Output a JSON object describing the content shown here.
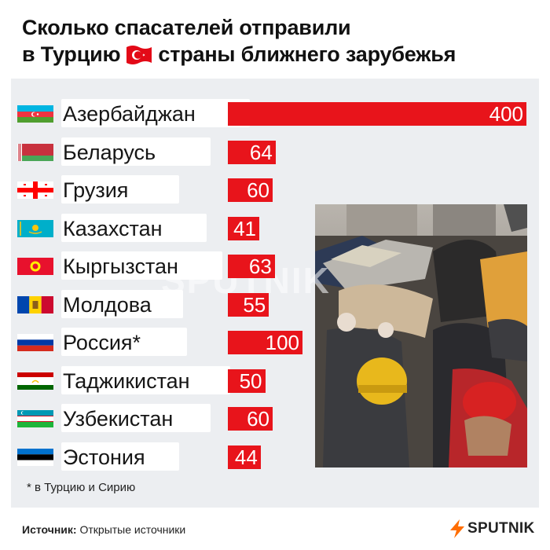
{
  "header": {
    "title_line1": "Сколько спасателей отправили",
    "title_line2_start": "в Турцию",
    "title_line2_end": "страны ближнего зарубежья",
    "title_flag_icon": "turkey-flag-icon"
  },
  "chart_data": {
    "type": "bar",
    "orientation": "horizontal",
    "title": "Сколько спасателей отправили в Турцию страны ближнего зарубежья",
    "categories": [
      "Азербайджан",
      "Беларусь",
      "Грузия",
      "Казахстан",
      "Кыргызстан",
      "Молдова",
      "Россия*",
      "Таджикистан",
      "Узбекистан",
      "Эстония"
    ],
    "values": [
      400,
      64,
      60,
      41,
      63,
      55,
      100,
      50,
      60,
      44
    ],
    "flags": [
      "azerbaijan-flag-icon",
      "belarus-flag-icon",
      "georgia-flag-icon",
      "kazakhstan-flag-icon",
      "kyrgyzstan-flag-icon",
      "moldova-flag-icon",
      "russia-flag-icon",
      "tajikistan-flag-icon",
      "uzbekistan-flag-icon",
      "estonia-flag-icon"
    ],
    "bar_color": "#e8141b",
    "xlabel": "",
    "ylabel": ""
  },
  "footnote": "* в Турцию и Сирию",
  "source": {
    "label": "Источник:",
    "value": "Открытые источники"
  },
  "brand": {
    "name": "SPUTNIK",
    "watermark": "SPUTNIK",
    "accent": "#ff6d00"
  },
  "colors": {
    "accent": "#e8141b",
    "panel": "#eceef1"
  }
}
